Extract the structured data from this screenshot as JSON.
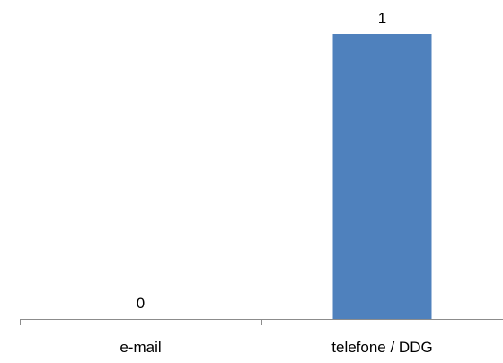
{
  "chart_data": {
    "type": "bar",
    "categories": [
      "e-mail",
      "telefone / DDG"
    ],
    "values": [
      0,
      1
    ],
    "data_labels": [
      "0",
      "1"
    ],
    "ylim": [
      0,
      1
    ],
    "grid": false,
    "legend": "none",
    "bar_color": "#4f81bd",
    "axis_color": "#8c8c8c"
  }
}
